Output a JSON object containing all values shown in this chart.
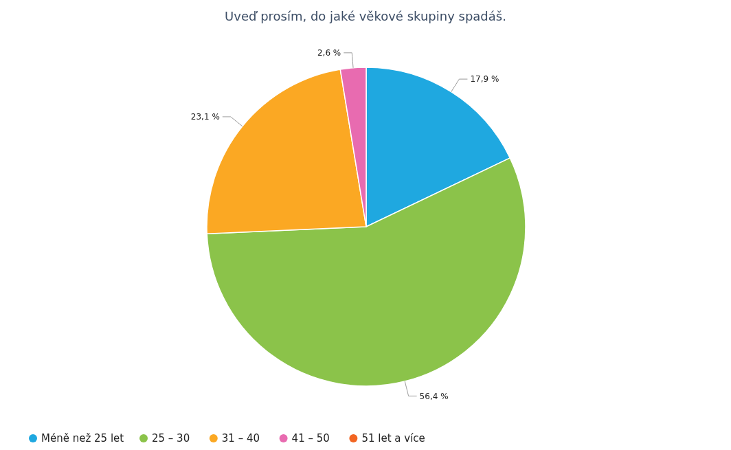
{
  "chart_data": {
    "type": "pie",
    "title": "Uveď prosím, do jaké věkové skupiny spadáš.",
    "categories": [
      "Méně než 25 let",
      "25 – 30",
      "31 – 40",
      "41 – 50",
      "51 let a více"
    ],
    "values": [
      17.9,
      56.4,
      23.1,
      2.6,
      0
    ],
    "colors": [
      "#1fa8e0",
      "#8bc34a",
      "#fba823",
      "#e86bb0",
      "#f26522"
    ],
    "value_labels": [
      "17,9 %",
      "56,4 %",
      "23,1 %",
      "2,6 %",
      null
    ],
    "legend": "bottom"
  }
}
